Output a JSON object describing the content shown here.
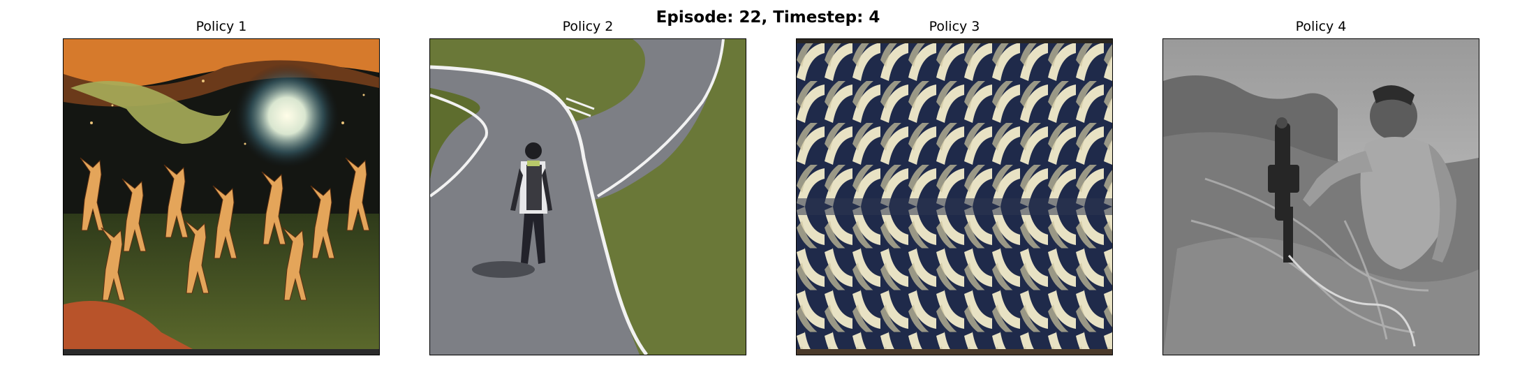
{
  "figure": {
    "title": "Episode: 22, Timestep: 4"
  },
  "panels": [
    {
      "title": "Policy 1",
      "content": "dancing-figures-painting"
    },
    {
      "title": "Policy 2",
      "content": "person-walking-on-road"
    },
    {
      "title": "Policy 3",
      "content": "wavy-pattern"
    },
    {
      "title": "Policy 4",
      "content": "man-with-machine-bw-photo"
    }
  ]
}
